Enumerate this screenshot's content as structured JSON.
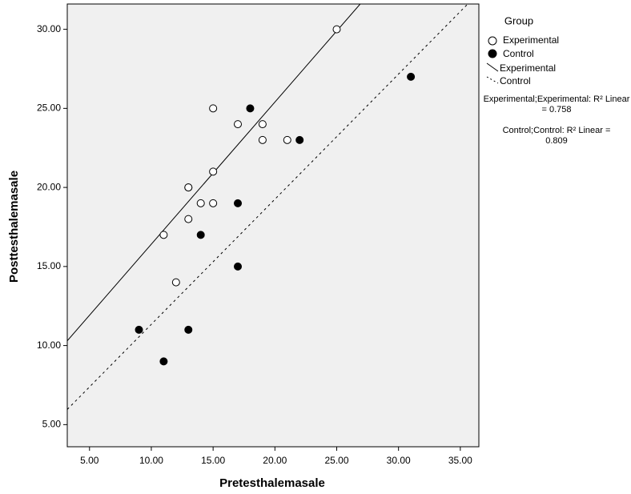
{
  "chart_data": {
    "type": "scatter",
    "x_label": "Pretesthalemasale",
    "y_label": "Posttesthalemasale",
    "legend_title": "Group",
    "xlim": [
      3.2,
      36.5
    ],
    "ylim": [
      3.6,
      31.6
    ],
    "xticks": [
      {
        "value": 5,
        "label": "5.00"
      },
      {
        "value": 10,
        "label": "10.00"
      },
      {
        "value": 15,
        "label": "15.00"
      },
      {
        "value": 20,
        "label": "20.00"
      },
      {
        "value": 25,
        "label": "25.00"
      },
      {
        "value": 30,
        "label": "30.00"
      },
      {
        "value": 35,
        "label": "35.00"
      }
    ],
    "yticks": [
      {
        "value": 5,
        "label": "5.00"
      },
      {
        "value": 10,
        "label": "10.00"
      },
      {
        "value": 15,
        "label": "15.00"
      },
      {
        "value": 20,
        "label": "20.00"
      },
      {
        "value": 25,
        "label": "25.00"
      },
      {
        "value": 30,
        "label": "30.00"
      }
    ],
    "series": [
      {
        "name": "Experimental",
        "color": "#ffffff",
        "x": [
          25,
          15,
          17,
          19,
          19,
          21,
          15,
          13,
          13,
          14,
          15,
          13,
          11,
          12
        ],
        "values": [
          30,
          25,
          24,
          24,
          23,
          23,
          21,
          20,
          20,
          19,
          19,
          18,
          17,
          14
        ]
      },
      {
        "name": "Control",
        "color": "#000000",
        "x": [
          18,
          22,
          31,
          17,
          14,
          17,
          9,
          13,
          11
        ],
        "values": [
          25,
          23,
          27,
          19,
          17,
          15,
          11,
          11,
          9
        ]
      }
    ],
    "fit_lines": [
      {
        "name": "Experimental",
        "dash": false,
        "x": [
          3.2,
          26.9
        ],
        "values": [
          10.3,
          31.6
        ]
      },
      {
        "name": "Control",
        "dash": true,
        "x": [
          3.2,
          35.6
        ],
        "values": [
          5.96,
          31.6
        ]
      }
    ],
    "annotations": [
      "Experimental;Experimental: R² Linear = 0.758",
      "Control;Control: R² Linear = 0.809"
    ]
  }
}
